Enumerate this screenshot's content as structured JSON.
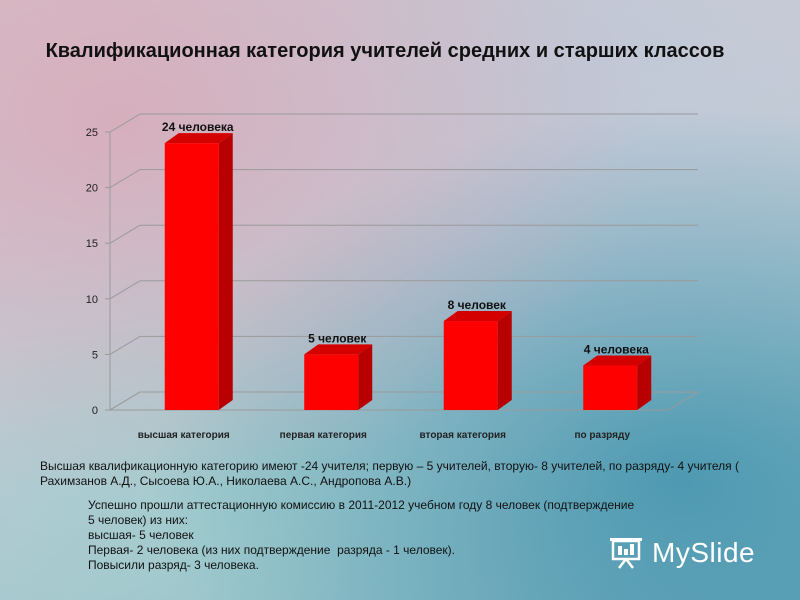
{
  "chart_data": {
    "type": "bar",
    "title": "Квалификационная категория учителей средних и старших классов",
    "categories": [
      "высшая категория",
      "первая категория",
      "вторая категория",
      "по разряду"
    ],
    "values": [
      24,
      5,
      8,
      4
    ],
    "data_labels": [
      "24 человека",
      "5 человек",
      "8 человек",
      "4 человека"
    ],
    "ylim": [
      0,
      25
    ],
    "yticks": [
      0,
      5,
      10,
      15,
      20,
      25
    ],
    "grid": true,
    "bar_color": "#ff0000",
    "bar_side_color": "#b80000",
    "bar_top_color": "#d40000"
  },
  "text": {
    "paragraph1": "Высшая квалификационную категорию имеют -24 учителя; первую – 5 учителей, вторую- 8 учителей, по разряду- 4 учителя ( Рахимзанов А.Д., Сысоева Ю.А., Николаева А.С., Андропова А.В.)",
    "paragraph2_lines": [
      "Успешно прошли аттестационную комиссию в 2011-2012 учебном году 8 человек (подтверждение",
      "5 человек) из них:",
      "высшая- 5 человек",
      "Первая- 2 человека (из них подтверждение  разряда - 1 человек).",
      "Повысили разряд- 3 человека."
    ]
  },
  "logo": {
    "text": "MySlide",
    "icon": "projector-screen-icon"
  }
}
